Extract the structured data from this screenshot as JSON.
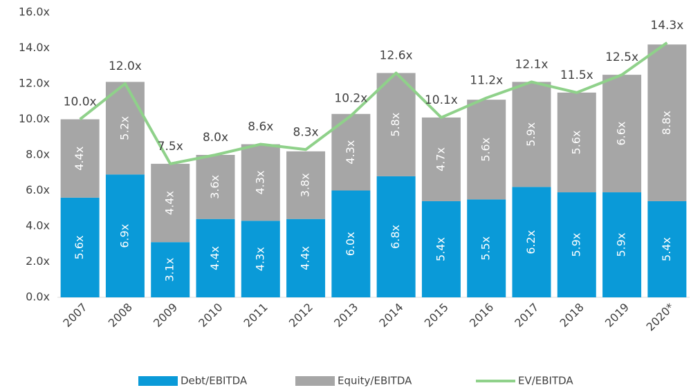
{
  "chart_data": {
    "type": "bar",
    "categories": [
      "2007",
      "2008",
      "2009",
      "2010",
      "2011",
      "2012",
      "2013",
      "2014",
      "2015",
      "2016",
      "2017",
      "2018",
      "2019",
      "2020*"
    ],
    "series": [
      {
        "name": "Debt/EBITDA",
        "type": "bar",
        "color": "#0a9ad8",
        "values": [
          5.6,
          6.9,
          3.1,
          4.4,
          4.3,
          4.4,
          6.0,
          6.8,
          5.4,
          5.5,
          6.2,
          5.9,
          5.9,
          5.4
        ],
        "value_labels": [
          "5.6x",
          "6.9x",
          "3.1x",
          "4.4x",
          "4.3x",
          "4.4x",
          "6.0x",
          "6.8x",
          "5.4x",
          "5.5x",
          "6.2x",
          "5.9x",
          "5.9x",
          "5.4x"
        ]
      },
      {
        "name": "Equity/EBITDA",
        "type": "bar",
        "color": "#a6a6a6",
        "values": [
          4.4,
          5.2,
          4.4,
          3.6,
          4.3,
          3.8,
          4.3,
          5.8,
          4.7,
          5.6,
          5.9,
          5.6,
          6.6,
          8.8
        ],
        "value_labels": [
          "4.4x",
          "5.2x",
          "4.4x",
          "3.6x",
          "4.3x",
          "3.8x",
          "4.3x",
          "5.8x",
          "4.7x",
          "5.6x",
          "5.9x",
          "5.6x",
          "6.6x",
          "8.8x"
        ]
      },
      {
        "name": "EV/EBITDA",
        "type": "line",
        "color": "#8fd18a",
        "values": [
          10.0,
          12.0,
          7.5,
          8.0,
          8.6,
          8.3,
          10.2,
          12.6,
          10.1,
          11.2,
          12.1,
          11.5,
          12.5,
          14.3
        ],
        "value_labels": [
          "10.0x",
          "12.0x",
          "7.5x",
          "8.0x",
          "8.6x",
          "8.3x",
          "10.2x",
          "12.6x",
          "10.1x",
          "11.2x",
          "12.1x",
          "11.5x",
          "12.5x",
          "14.3x"
        ]
      }
    ],
    "stacked": true,
    "ylim": [
      0,
      16
    ],
    "yticks": [
      {
        "value": 0,
        "label": "0.0x"
      },
      {
        "value": 2,
        "label": "2.0x"
      },
      {
        "value": 4,
        "label": "4.0x"
      },
      {
        "value": 6,
        "label": "6.0x"
      },
      {
        "value": 8,
        "label": "8.0x"
      },
      {
        "value": 10,
        "label": "10.0x"
      },
      {
        "value": 12,
        "label": "12.0x"
      },
      {
        "value": 14,
        "label": "14.0x"
      },
      {
        "value": 16,
        "label": "16.0x"
      }
    ],
    "legend": "bottom"
  }
}
